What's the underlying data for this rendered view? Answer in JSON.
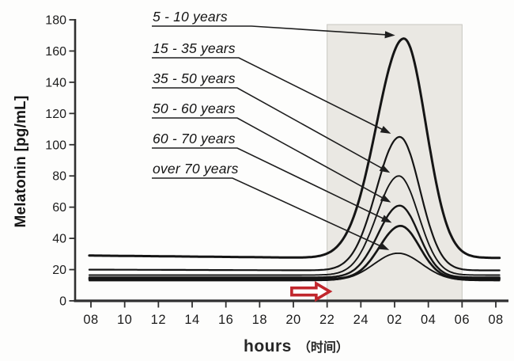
{
  "axis_labels": {
    "y": "Melatonin [pg/mL]",
    "x_main": "hours",
    "x_secondary": "（时间）"
  },
  "chart_data": {
    "type": "line",
    "title": "",
    "ylabel": "Melatonin [pg/mL]",
    "xlabel": "hours （时间）",
    "x_tick_labels": [
      "08",
      "10",
      "12",
      "14",
      "16",
      "18",
      "20",
      "22",
      "24",
      "02",
      "04",
      "06",
      "08"
    ],
    "y_ticks": [
      0,
      20,
      40,
      60,
      80,
      100,
      120,
      140,
      160,
      180
    ],
    "ylim": [
      0,
      180
    ],
    "grid": false,
    "legend_position": "pointed labels upper-left, leader arrows to each curve peak",
    "night_shading": {
      "start_label": "22",
      "end_label": "06",
      "start_hour_offset": 14,
      "end_hour_offset": 22,
      "fill": "#eae8e3",
      "edge": "#c8c7c0"
    },
    "series": [
      {
        "name": "5 - 10 years",
        "baseline": 29,
        "baseline_late": 27.5,
        "peak": 168,
        "peak_clock_time": "02:30",
        "peak_hour": 18.55,
        "sigma_left": 2.3,
        "sigma_right": 1.85,
        "stroke_width": 3.0,
        "values_at_ticks": [
          29,
          29,
          29,
          28,
          28,
          28,
          28,
          31,
          73,
          163,
          97,
          33,
          28
        ]
      },
      {
        "name": "15 - 35 years",
        "baseline": 20,
        "baseline_late": 19.5,
        "peak": 105,
        "peak_clock_time": "02:20",
        "peak_hour": 18.3,
        "sigma_left": 1.95,
        "sigma_right": 1.7,
        "stroke_width": 2.2,
        "values_at_ticks": [
          20,
          20,
          20,
          20,
          20,
          20,
          20,
          20,
          41,
          103,
          51,
          20,
          20
        ]
      },
      {
        "name": "35 - 50 years",
        "baseline": 16.5,
        "baseline_late": 16.5,
        "peak": 80,
        "peak_clock_time": "02:15",
        "peak_hour": 18.25,
        "sigma_left": 1.85,
        "sigma_right": 1.65,
        "stroke_width": 1.9,
        "values_at_ticks": [
          17,
          17,
          17,
          17,
          17,
          17,
          17,
          17,
          31,
          79,
          37,
          17,
          17
        ]
      },
      {
        "name": "50 - 60 years",
        "baseline": 15,
        "baseline_late": 15,
        "peak": 61,
        "peak_clock_time": "02:20",
        "peak_hour": 18.3,
        "sigma_left": 1.8,
        "sigma_right": 1.6,
        "stroke_width": 2.4,
        "values_at_ticks": [
          15,
          15,
          15,
          15,
          15,
          15,
          15,
          15,
          24,
          60,
          30,
          15,
          15
        ]
      },
      {
        "name": "60 - 70 years",
        "baseline": 14,
        "baseline_late": 14,
        "peak": 48,
        "peak_clock_time": "02:20",
        "peak_hour": 18.35,
        "sigma_left": 1.75,
        "sigma_right": 1.6,
        "stroke_width": 2.7,
        "values_at_ticks": [
          14,
          14,
          14,
          14,
          14,
          14,
          14,
          14,
          20,
          47,
          26,
          14,
          14
        ]
      },
      {
        "name": "over 70 years",
        "baseline": 13,
        "baseline_late": 13,
        "peak": 30.5,
        "peak_clock_time": "02:15",
        "peak_hour": 18.2,
        "sigma_left": 2.0,
        "sigma_right": 2.0,
        "stroke_width": 1.9,
        "values_at_ticks": [
          13,
          13,
          13,
          13,
          13,
          13,
          13,
          13,
          18,
          30,
          21,
          13,
          13
        ]
      }
    ],
    "annotation_arrow": {
      "shape": "hollow-right-arrow",
      "color": "#c1272d",
      "from_hour_offset": 11.9,
      "to_hour_offset": 14.15,
      "y_value": 6
    }
  }
}
